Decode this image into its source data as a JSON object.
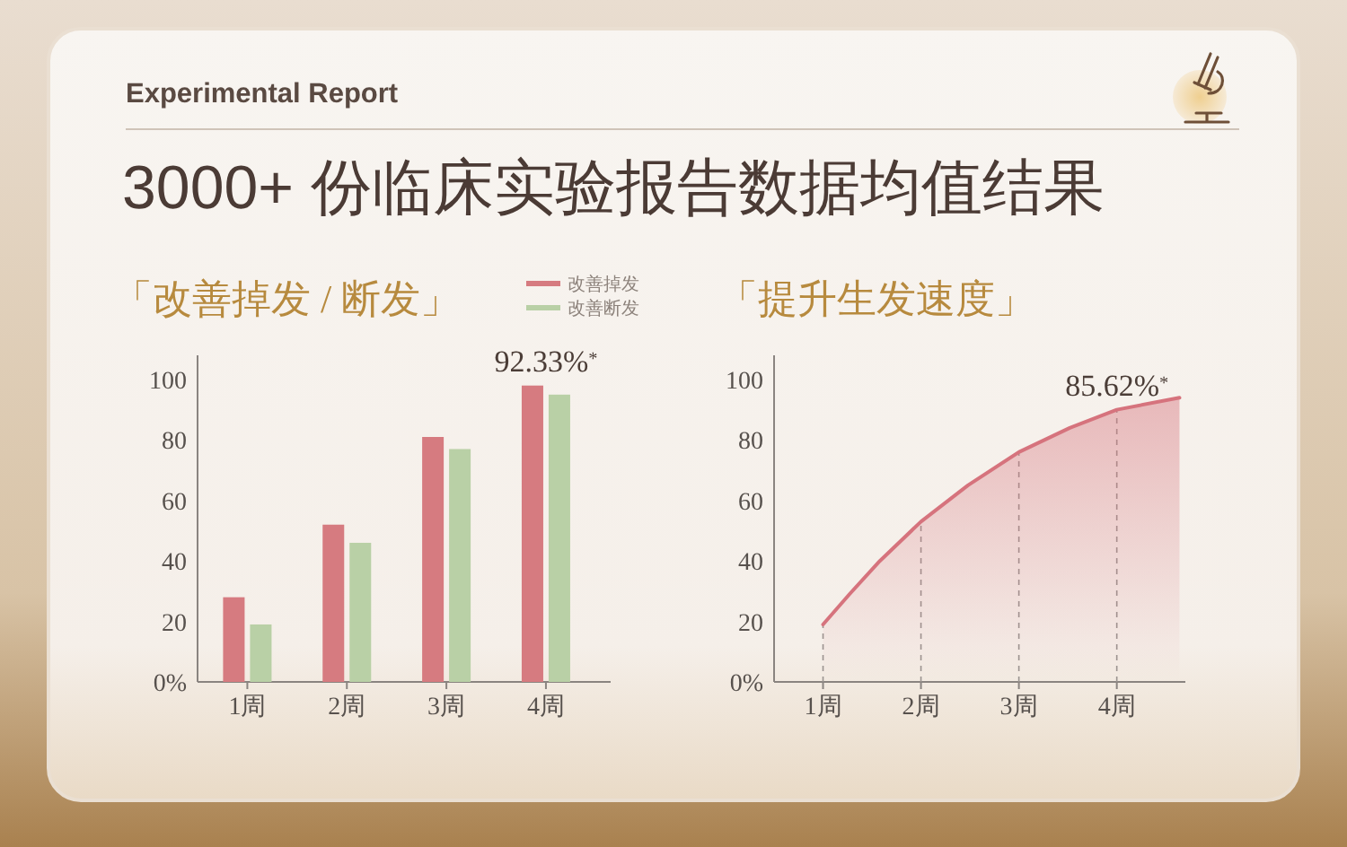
{
  "chart_data": [
    {
      "type": "other",
      "subtitle": "Experimental Report",
      "title": "3000+ 份临床实验报告数据均值结果"
    },
    {
      "type": "bar",
      "title": "「改善掉发 / 断发」",
      "categories": [
        "1周",
        "2周",
        "3周",
        "4周"
      ],
      "series": [
        {
          "name": "改善掉发",
          "color": "#d67b80",
          "values": [
            28,
            52,
            81,
            98
          ]
        },
        {
          "name": "改善断发",
          "color": "#b9d0a6",
          "values": [
            19,
            46,
            77,
            95
          ]
        }
      ],
      "ylim": [
        0,
        108
      ],
      "yticks": [
        {
          "value": 0,
          "label": "0%"
        },
        20,
        40,
        60,
        80,
        100
      ],
      "legend": "top right",
      "annotations": [
        {
          "text": "92.33%$^{*}$",
          "x": "4周",
          "y": 98
        }
      ]
    },
    {
      "type": "area",
      "title": "「提升生发速度」",
      "x": [
        1,
        1.27,
        1.58,
        2,
        2.48,
        3,
        3.52,
        4,
        4.64
      ],
      "series": [
        {
          "color": "#d6737d",
          "values": [
            19,
            29,
            40,
            53,
            65,
            76,
            84,
            90,
            94
          ]
        }
      ],
      "xlim": [
        0.5,
        4.7
      ],
      "xticks": [
        {
          "value": 1,
          "label": "1周"
        },
        {
          "value": 2,
          "label": "2周"
        },
        {
          "value": 3,
          "label": "3周"
        },
        {
          "value": 4,
          "label": "4周"
        }
      ],
      "ylim": [
        0,
        108
      ],
      "yticks": [
        {
          "value": 0,
          "label": "0%"
        },
        20,
        40,
        60,
        80,
        100
      ],
      "ref_lines": [
        {
          "axis": "x",
          "value": 1,
          "line_style": "dashed"
        },
        {
          "axis": "x",
          "value": 2,
          "line_style": "dashed"
        },
        {
          "axis": "x",
          "value": 3,
          "line_style": "dashed"
        },
        {
          "axis": "x",
          "value": 4,
          "line_style": "dashed"
        }
      ],
      "annotations": [
        {
          "text": "85.62%$^{*}$",
          "x": 4,
          "y": 90
        }
      ]
    }
  ]
}
